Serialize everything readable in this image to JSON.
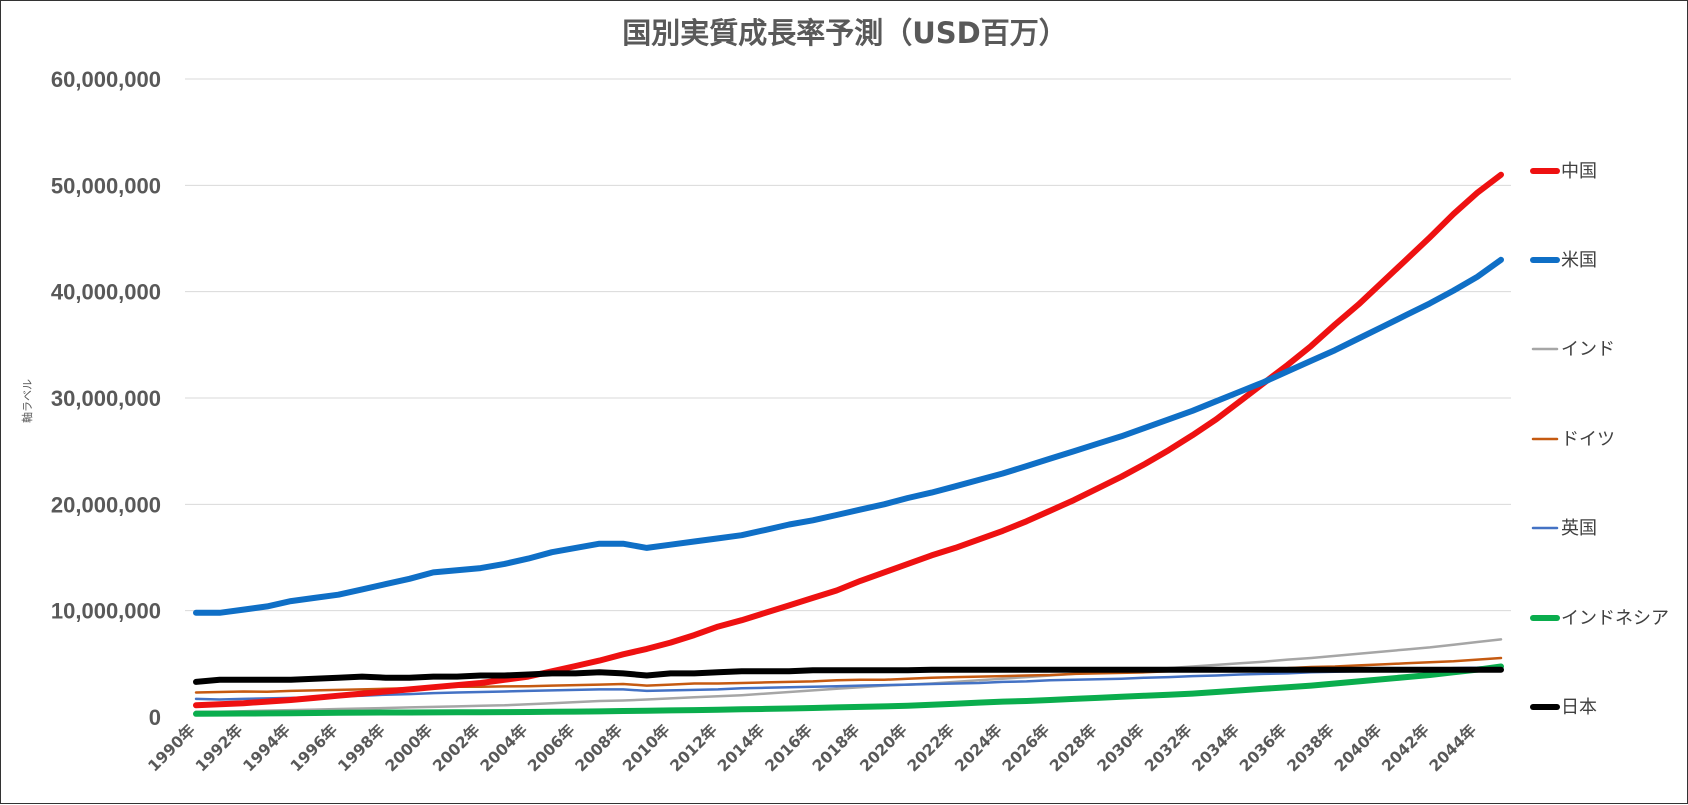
{
  "chart_data": {
    "type": "line",
    "title": "国別実質成長率予測（USD百万）",
    "ylabel": "軸ラベル",
    "xlabel": "",
    "ylim": [
      0,
      60000000
    ],
    "yticks": [
      0,
      10000000,
      20000000,
      30000000,
      40000000,
      50000000,
      60000000
    ],
    "ytick_labels": [
      "0",
      "10,000,000",
      "20,000,000",
      "30,000,000",
      "40,000,000",
      "50,000,000",
      "60,000,000"
    ],
    "grid": true,
    "legend_position": "right",
    "categories": [
      "1990年",
      "1991年",
      "1992年",
      "1993年",
      "1994年",
      "1995年",
      "1996年",
      "1997年",
      "1998年",
      "1999年",
      "2000年",
      "2001年",
      "2002年",
      "2003年",
      "2004年",
      "2005年",
      "2006年",
      "2007年",
      "2008年",
      "2009年",
      "2010年",
      "2011年",
      "2012年",
      "2013年",
      "2014年",
      "2015年",
      "2016年",
      "2017年",
      "2018年",
      "2019年",
      "2020年",
      "2021年",
      "2022年",
      "2023年",
      "2024年",
      "2025年",
      "2026年",
      "2027年",
      "2028年",
      "2029年",
      "2030年",
      "2031年",
      "2032年",
      "2033年",
      "2034年",
      "2035年",
      "2036年",
      "2037年",
      "2038年",
      "2039年",
      "2040年",
      "2041年",
      "2042年",
      "2043年",
      "2044年",
      "2045年"
    ],
    "xtick_labels": [
      "1990年",
      "1992年",
      "1994年",
      "1996年",
      "1998年",
      "2000年",
      "2002年",
      "2004年",
      "2006年",
      "2008年",
      "2010年",
      "2012年",
      "2014年",
      "2016年",
      "2018年",
      "2020年",
      "2022年",
      "2024年",
      "2026年",
      "2028年",
      "2030年",
      "2032年",
      "2034年",
      "2036年",
      "2038年",
      "2040年",
      "2042年",
      "2044年"
    ],
    "series": [
      {
        "name": "中国",
        "color": "#ee1111",
        "width": 6,
        "values": [
          1100000,
          1200000,
          1300000,
          1450000,
          1600000,
          1800000,
          2000000,
          2200000,
          2400000,
          2600000,
          2800000,
          3000000,
          3200000,
          3500000,
          3800000,
          4300000,
          4800000,
          5300000,
          5900000,
          6400000,
          7000000,
          7700000,
          8500000,
          9100000,
          9800000,
          10500000,
          11200000,
          11900000,
          12800000,
          13600000,
          14400000,
          15200000,
          15900000,
          16700000,
          17500000,
          18400000,
          19400000,
          20400000,
          21500000,
          22600000,
          23800000,
          25100000,
          26500000,
          28000000,
          29700000,
          31400000,
          33100000,
          34900000,
          36900000,
          38800000,
          40900000,
          43000000,
          45100000,
          47300000,
          49300000,
          51000000
        ]
      },
      {
        "name": "米国",
        "color": "#0f6fc6",
        "width": 6,
        "values": [
          9800000,
          9800000,
          10100000,
          10400000,
          10900000,
          11200000,
          11500000,
          12000000,
          12500000,
          13000000,
          13600000,
          13800000,
          14000000,
          14400000,
          14900000,
          15500000,
          15900000,
          16300000,
          16300000,
          15900000,
          16200000,
          16500000,
          16800000,
          17100000,
          17600000,
          18100000,
          18500000,
          19000000,
          19500000,
          20000000,
          20600000,
          21100000,
          21700000,
          22300000,
          22900000,
          23600000,
          24300000,
          25000000,
          25700000,
          26400000,
          27200000,
          28000000,
          28800000,
          29700000,
          30600000,
          31500000,
          32500000,
          33500000,
          34500000,
          35600000,
          36700000,
          37800000,
          38900000,
          40100000,
          41400000,
          43000000
        ]
      },
      {
        "name": "インド",
        "color": "#a6a6a6",
        "width": 2.5,
        "values": [
          500000,
          500000,
          550000,
          600000,
          650000,
          700000,
          750000,
          800000,
          850000,
          900000,
          950000,
          1000000,
          1050000,
          1100000,
          1200000,
          1300000,
          1400000,
          1500000,
          1550000,
          1650000,
          1750000,
          1850000,
          1950000,
          2050000,
          2200000,
          2350000,
          2500000,
          2650000,
          2800000,
          2950000,
          3050000,
          3150000,
          3300000,
          3450000,
          3600000,
          3750000,
          3900000,
          4050000,
          4200000,
          4350000,
          4450000,
          4600000,
          4750000,
          4900000,
          5050000,
          5200000,
          5400000,
          5550000,
          5750000,
          5950000,
          6150000,
          6350000,
          6550000,
          6800000,
          7050000,
          7300000
        ]
      },
      {
        "name": "ドイツ",
        "color": "#c55a11",
        "width": 2.5,
        "values": [
          2300000,
          2350000,
          2400000,
          2380000,
          2450000,
          2500000,
          2550000,
          2600000,
          2650000,
          2700000,
          2800000,
          2850000,
          2850000,
          2880000,
          2900000,
          2950000,
          3000000,
          3050000,
          3100000,
          2950000,
          3050000,
          3150000,
          3150000,
          3200000,
          3250000,
          3300000,
          3350000,
          3450000,
          3500000,
          3500000,
          3600000,
          3700000,
          3750000,
          3800000,
          3850000,
          3900000,
          3950000,
          4050000,
          4100000,
          4150000,
          4200000,
          4300000,
          4350000,
          4400000,
          4500000,
          4550000,
          4600000,
          4700000,
          4750000,
          4850000,
          4950000,
          5050000,
          5150000,
          5250000,
          5400000,
          5550000
        ]
      },
      {
        "name": "英国",
        "color": "#4472c4",
        "width": 2.5,
        "values": [
          1700000,
          1650000,
          1700000,
          1750000,
          1800000,
          1850000,
          1950000,
          2000000,
          2100000,
          2150000,
          2250000,
          2300000,
          2350000,
          2400000,
          2450000,
          2500000,
          2550000,
          2600000,
          2600000,
          2450000,
          2500000,
          2550000,
          2600000,
          2700000,
          2750000,
          2800000,
          2850000,
          2900000,
          2950000,
          3000000,
          3050000,
          3100000,
          3150000,
          3200000,
          3300000,
          3350000,
          3450000,
          3500000,
          3550000,
          3600000,
          3700000,
          3750000,
          3850000,
          3900000,
          4000000,
          4050000,
          4100000,
          4200000,
          4250000,
          4300000,
          4400000,
          4450000,
          4500000,
          4600000,
          4650000,
          4750000
        ]
      },
      {
        "name": "インドネシア",
        "color": "#0aad4d",
        "width": 6,
        "values": [
          300000,
          320000,
          330000,
          340000,
          350000,
          380000,
          400000,
          410000,
          420000,
          420000,
          430000,
          440000,
          450000,
          460000,
          470000,
          490000,
          510000,
          530000,
          560000,
          590000,
          620000,
          650000,
          680000,
          720000,
          760000,
          800000,
          850000,
          900000,
          950000,
          1000000,
          1050000,
          1150000,
          1250000,
          1350000,
          1450000,
          1500000,
          1600000,
          1700000,
          1800000,
          1900000,
          2000000,
          2100000,
          2200000,
          2350000,
          2500000,
          2650000,
          2800000,
          2950000,
          3150000,
          3350000,
          3550000,
          3750000,
          3950000,
          4200000,
          4450000,
          4750000
        ]
      },
      {
        "name": "日本",
        "color": "#000000",
        "width": 6,
        "values": [
          3300000,
          3500000,
          3500000,
          3500000,
          3500000,
          3600000,
          3700000,
          3800000,
          3700000,
          3700000,
          3800000,
          3800000,
          3900000,
          3900000,
          4000000,
          4100000,
          4100000,
          4200000,
          4100000,
          3900000,
          4100000,
          4100000,
          4200000,
          4300000,
          4300000,
          4300000,
          4400000,
          4400000,
          4400000,
          4400000,
          4400000,
          4450000,
          4450000,
          4450000,
          4450000,
          4450000,
          4450000,
          4450000,
          4450000,
          4450000,
          4450000,
          4450000,
          4450000,
          4450000,
          4450000,
          4450000,
          4450000,
          4450000,
          4450000,
          4450000,
          4450000,
          4450000,
          4450000,
          4450000,
          4450000,
          4450000
        ]
      }
    ]
  }
}
